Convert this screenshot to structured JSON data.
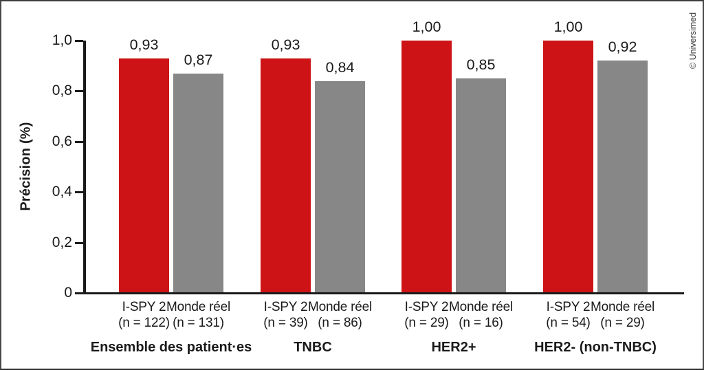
{
  "credit": "© Universimed",
  "chart_data": {
    "type": "bar",
    "title": "",
    "ylabel": "Précision (%)",
    "xlabel": "",
    "ylim": [
      0,
      1.0
    ],
    "grid": false,
    "legend_position": "none",
    "decimal_separator": ",",
    "yticks": [
      {
        "value": 0,
        "label": "0"
      },
      {
        "value": 0.2,
        "label": "0,2"
      },
      {
        "value": 0.4,
        "label": "0,4"
      },
      {
        "value": 0.6,
        "label": "0,6"
      },
      {
        "value": 0.8,
        "label": "0,8"
      },
      {
        "value": 1.0,
        "label": "1,0"
      }
    ],
    "series": [
      {
        "name": "I-SPY 2",
        "color": "#cd1316"
      },
      {
        "name": "Monde réel",
        "color": "#878787"
      }
    ],
    "categories": [
      "Ensemble des patient·es",
      "TNBC",
      "HER2+",
      "HER2- (non-TNBC)"
    ],
    "groups": [
      {
        "label": "Ensemble des patient·es",
        "bars": [
          {
            "series": "I-SPY 2",
            "n_label": "(n = 122)",
            "value": 0.93,
            "value_label": "0,93"
          },
          {
            "series": "Monde réel",
            "n_label": "(n = 131)",
            "value": 0.87,
            "value_label": "0,87"
          }
        ]
      },
      {
        "label": "TNBC",
        "bars": [
          {
            "series": "I-SPY 2",
            "n_label": "(n = 39)",
            "value": 0.93,
            "value_label": "0,93"
          },
          {
            "series": "Monde réel",
            "n_label": "(n = 86)",
            "value": 0.84,
            "value_label": "0,84"
          }
        ]
      },
      {
        "label": "HER2+",
        "bars": [
          {
            "series": "I-SPY 2",
            "n_label": "(n = 29)",
            "value": 1.0,
            "value_label": "1,00"
          },
          {
            "series": "Monde réel",
            "n_label": "(n = 16)",
            "value": 0.85,
            "value_label": "0,85"
          }
        ]
      },
      {
        "label": "HER2- (non-TNBC)",
        "bars": [
          {
            "series": "I-SPY 2",
            "n_label": "(n = 54)",
            "value": 1.0,
            "value_label": "1,00"
          },
          {
            "series": "Monde réel",
            "n_label": "(n = 29)",
            "value": 0.92,
            "value_label": "0,92"
          }
        ]
      }
    ]
  }
}
